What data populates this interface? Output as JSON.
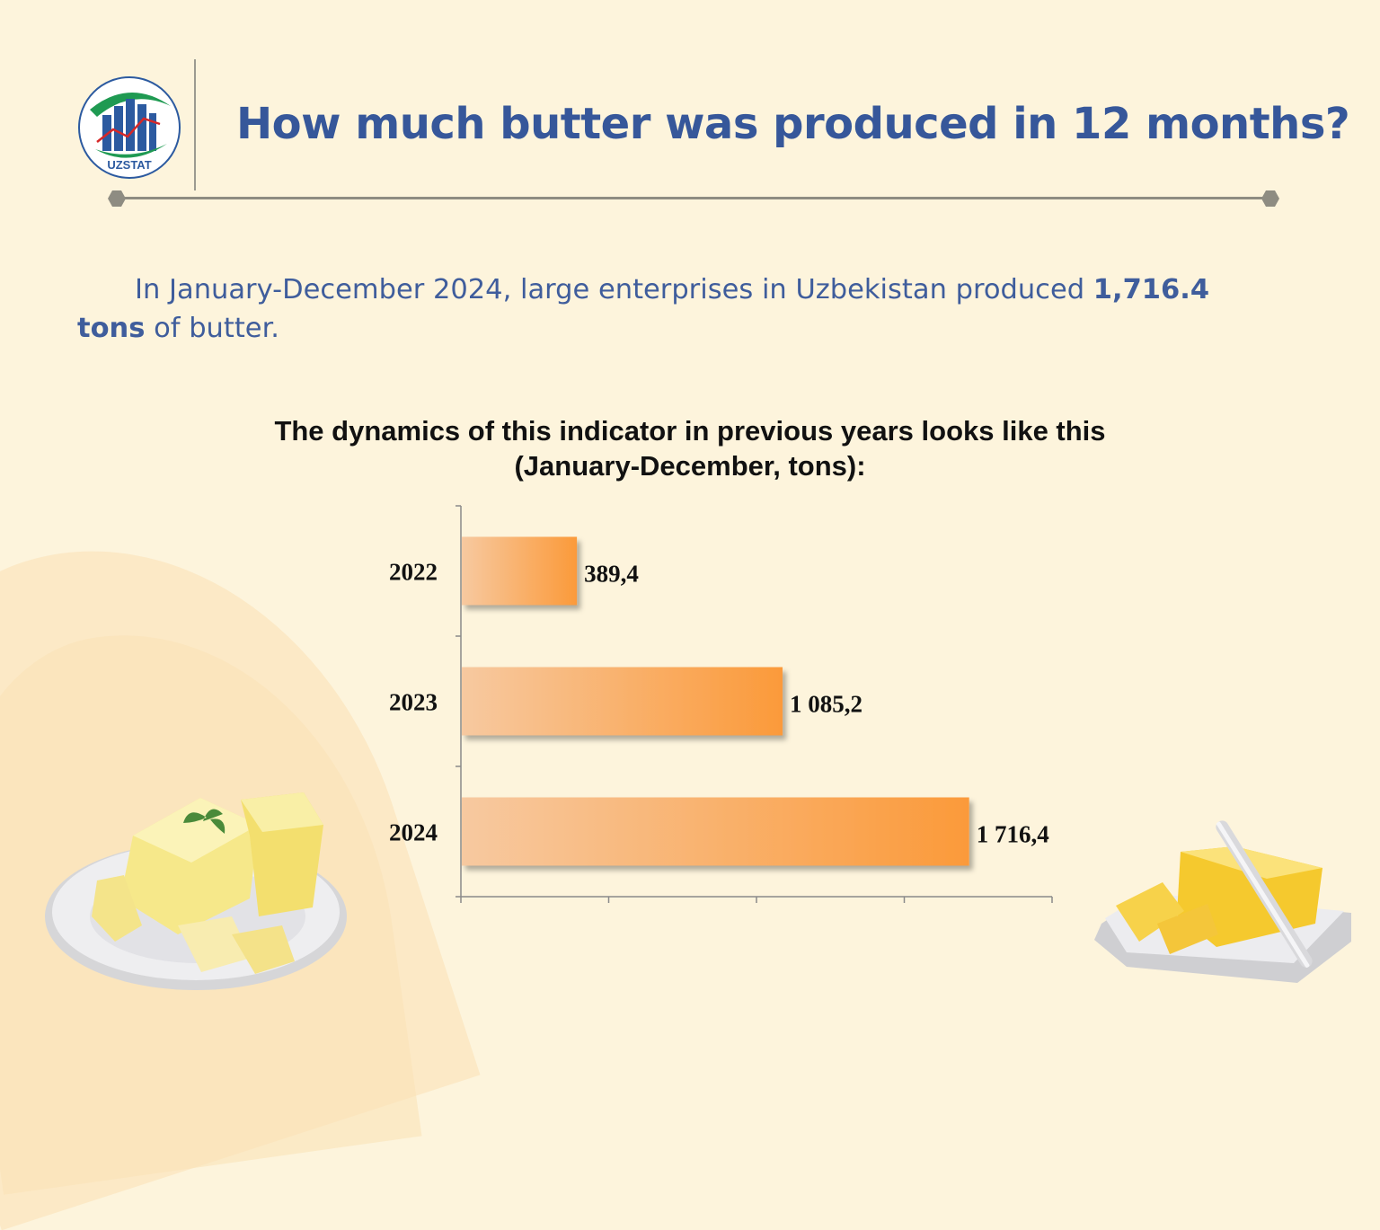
{
  "brand": {
    "logo_text": "UZSTAT",
    "primary_color": "#36579a",
    "accent_green": "#1f9a52"
  },
  "header": {
    "title": "How much butter was produced in 12 months?"
  },
  "intro": {
    "lead": "In January-December 2024, large enterprises in Uzbekistan produced ",
    "highlight": "1,716.4 tons",
    "tail": " of butter."
  },
  "chart": {
    "subtitle_line1": "The dynamics of this indicator in previous years looks like this",
    "subtitle_line2": "(January-December, tons):"
  },
  "chart_data": {
    "type": "bar",
    "orientation": "horizontal",
    "categories": [
      "2022",
      "2023",
      "2024"
    ],
    "values": [
      389.4,
      1085.2,
      1716.4
    ],
    "value_labels": [
      "389,4",
      "1 085,2",
      "1 716,4"
    ],
    "title": "",
    "xlabel": "",
    "ylabel": "",
    "xlim": [
      0,
      2000
    ],
    "grid": false,
    "bar_color": "#fb9a3a"
  },
  "decor": {
    "left_icon": "butter-plate-icon",
    "right_icon": "butter-dish-knife-icon"
  }
}
